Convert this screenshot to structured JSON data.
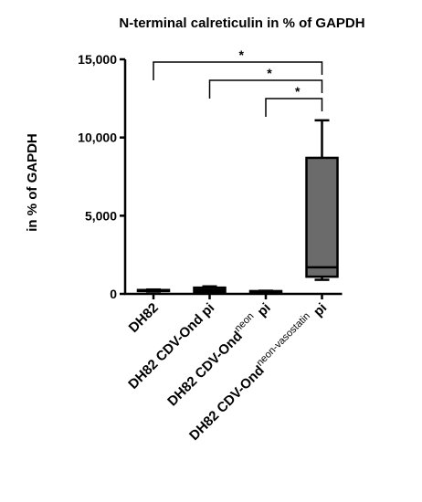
{
  "chart_data": {
    "type": "box",
    "title": "N-terminal calreticulin in % of GAPDH",
    "y_label": "in % of GAPDH",
    "categories": [
      {
        "text": "DH82"
      },
      {
        "text": "DH82 CDV-Ond pi"
      },
      {
        "text": "DH82 CDV-Ond",
        "sup": "neon",
        "after": "pi"
      },
      {
        "text": "DH82 CDV-Ond",
        "sup": "neon-vasostatin",
        "after": "pi"
      }
    ],
    "boxes": [
      {
        "min": 150,
        "q1": 180,
        "median": 200,
        "q3": 250,
        "max": 280
      },
      {
        "min": 100,
        "q1": 120,
        "median": 250,
        "q3": 400,
        "max": 480
      },
      {
        "min": 80,
        "q1": 100,
        "median": 130,
        "q3": 180,
        "max": 200
      },
      {
        "min": 900,
        "q1": 1100,
        "median": 1700,
        "q3": 8700,
        "max": 11100
      }
    ],
    "color": "#6b6b6b",
    "ylim": [
      0,
      15000
    ],
    "yticks": [
      {
        "value": 0,
        "label": "0"
      },
      {
        "value": 5000,
        "label": "5,000"
      },
      {
        "value": 10000,
        "label": "10,000"
      },
      {
        "value": 15000,
        "label": "15,000"
      }
    ],
    "significance": [
      {
        "from": 0,
        "to": 3,
        "label": "*"
      },
      {
        "from": 1,
        "to": 3,
        "label": "*"
      },
      {
        "from": 2,
        "to": 3,
        "label": "*"
      }
    ]
  }
}
